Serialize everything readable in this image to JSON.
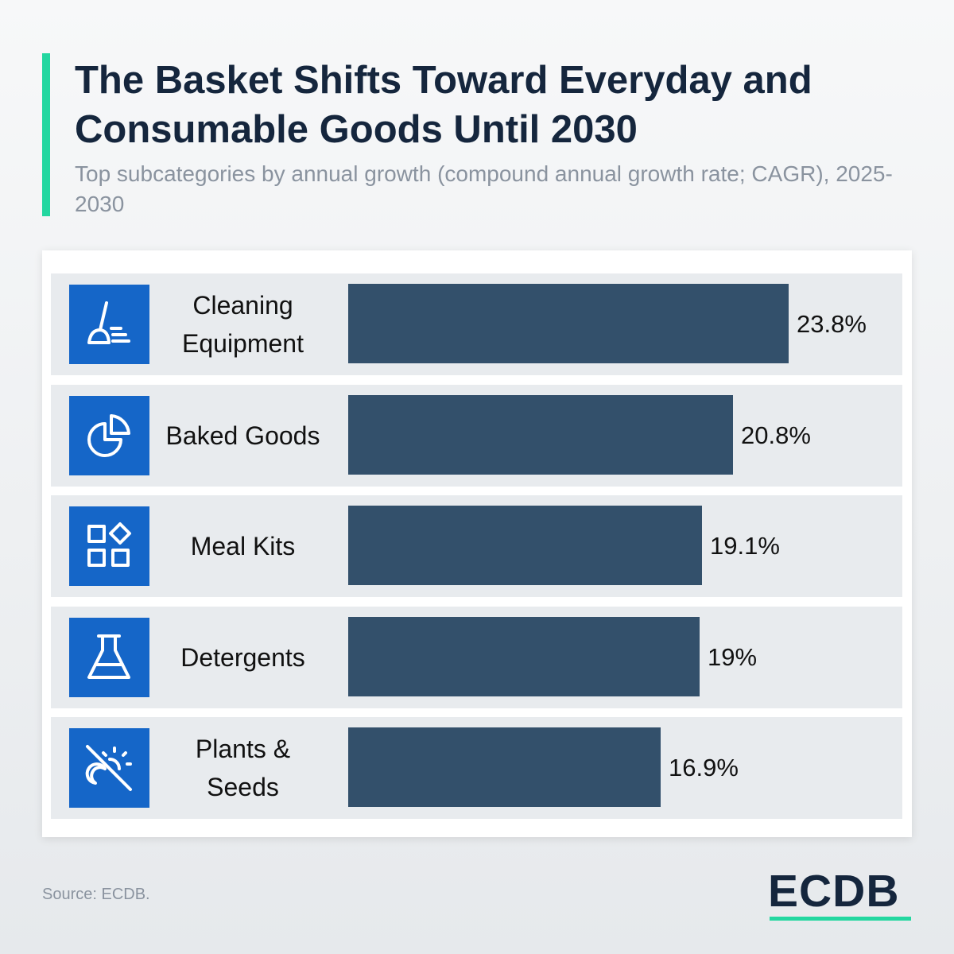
{
  "header": {
    "title": "The Basket Shifts Toward Everyday and Consumable Goods Until 2030",
    "subtitle": "Top subcategories by annual growth (compound annual growth rate; CAGR), 2025-2030"
  },
  "colors": {
    "accent": "#23d7a0",
    "bar": "#33506b",
    "icon_background": "#1566c8",
    "title": "#15263d",
    "subtitle": "#8a939f"
  },
  "chart_data": {
    "type": "bar",
    "orientation": "horizontal",
    "title": "The Basket Shifts Toward Everyday and Consumable Goods Until 2030",
    "subtitle": "Top subcategories by annual growth (compound annual growth rate; CAGR), 2025-2030",
    "categories": [
      "Cleaning Equipment",
      "Baked Goods",
      "Meal Kits",
      "Detergents",
      "Plants & Seeds"
    ],
    "values": [
      23.8,
      20.8,
      19.1,
      19,
      16.9
    ],
    "value_labels": [
      "23.8%",
      "20.8%",
      "19.1%",
      "19%",
      "16.9%"
    ],
    "icons": [
      "broom-icon",
      "pie-chart-icon",
      "grid-shapes-icon",
      "flask-icon",
      "sun-moon-off-icon"
    ],
    "xlim": [
      0,
      23.8
    ],
    "grid": false,
    "legend": "none"
  },
  "footer": {
    "source": "Source: ECDB.",
    "logo_text": "ECDB"
  }
}
